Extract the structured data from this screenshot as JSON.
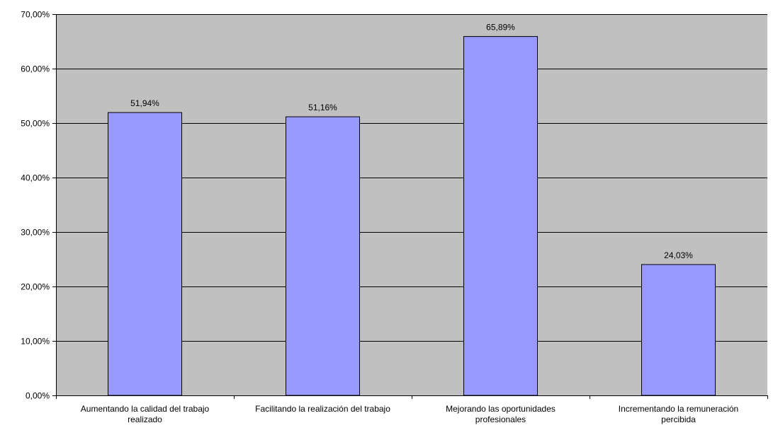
{
  "chart_data": {
    "type": "bar",
    "categories": [
      [
        "Aumentando la calidad del trabajo",
        "realizado"
      ],
      [
        "Facilitando la realización del trabajo"
      ],
      [
        "Mejorando las oportunidades",
        "profesionales"
      ],
      [
        "Incrementando la remuneración",
        "percibida"
      ]
    ],
    "values": [
      51.94,
      51.16,
      65.89,
      24.03
    ],
    "value_labels": [
      "51,94%",
      "51,16%",
      "65,89%",
      "24,03%"
    ],
    "y_ticks": [
      0,
      10,
      20,
      30,
      40,
      50,
      60,
      70
    ],
    "y_tick_labels": [
      "0,00%",
      "10,00%",
      "20,00%",
      "30,00%",
      "40,00%",
      "50,00%",
      "60,00%",
      "70,00%"
    ],
    "ylim": [
      0,
      70
    ],
    "title": "",
    "xlabel": "",
    "ylabel": "",
    "grid": true,
    "legend": "none",
    "colors": {
      "plot_background": "#c0c0c0",
      "bar_fill": "#9999ff",
      "bar_stroke": "#000000",
      "gridline": "#000000",
      "axis": "#000000"
    }
  }
}
